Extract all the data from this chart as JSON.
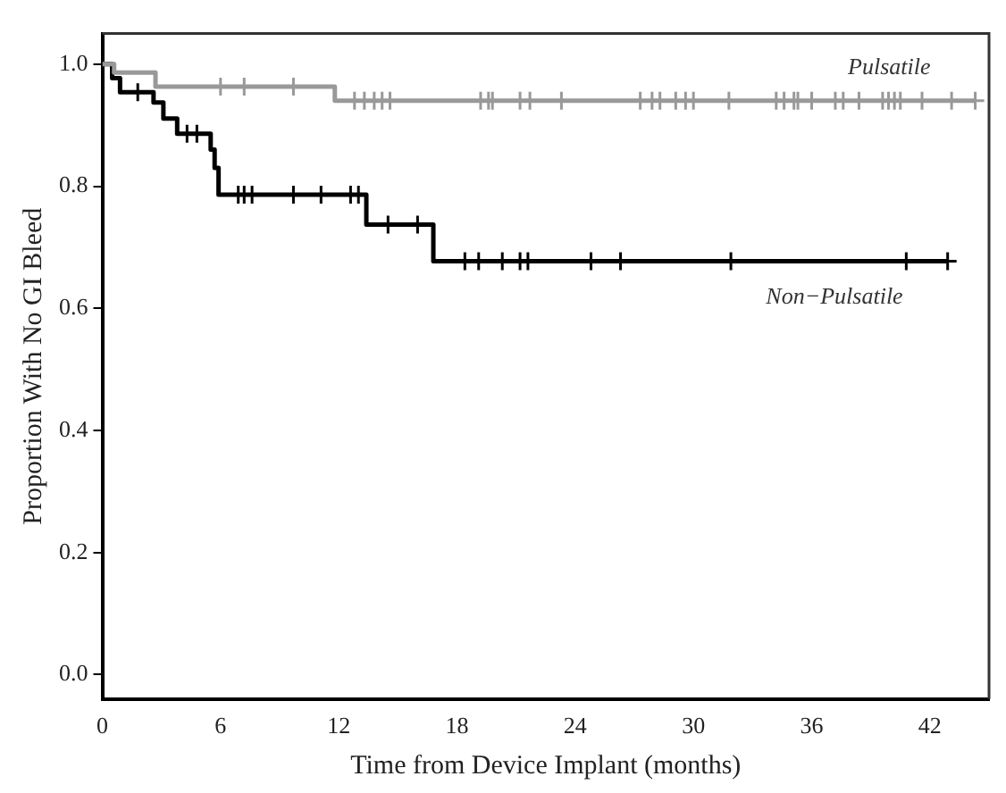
{
  "chart_data": {
    "type": "step",
    "xlabel": "Time from Device Implant (months)",
    "ylabel": "Proportion With No GI Bleed",
    "xlim": [
      0,
      45
    ],
    "ylim": [
      -0.04,
      1.05
    ],
    "xticks": [
      0,
      6,
      12,
      18,
      24,
      30,
      36,
      42
    ],
    "yticks": [
      {
        "value": 0,
        "label": "0.0"
      },
      {
        "value": 0.2,
        "label": "0.2"
      },
      {
        "value": 0.4,
        "label": "0.4"
      },
      {
        "value": 0.6,
        "label": "0.6"
      },
      {
        "value": 0.8,
        "label": "0.8"
      },
      {
        "value": 1,
        "label": "1.0"
      }
    ],
    "grid": false,
    "legend": false,
    "marker": "none",
    "line_style": "solid",
    "series": [
      {
        "name": "Pulsatile",
        "type": "step",
        "color": "#999999",
        "x": [
          0,
          0.6,
          2.7,
          11.8,
          44.3
        ],
        "values": [
          1,
          0.986,
          0.963,
          0.94,
          0.94
        ]
      },
      {
        "name": "Non−Pulsatile",
        "type": "step",
        "color": "#000000",
        "x": [
          0,
          0.5,
          0.9,
          2.6,
          3.1,
          3.8,
          5.5,
          5.7,
          5.9,
          13.4,
          16.8,
          42.9
        ],
        "values": [
          1,
          0.977,
          0.954,
          0.937,
          0.911,
          0.886,
          0.86,
          0.83,
          0.786,
          0.737,
          0.677,
          0.677
        ]
      },
      {
        "type": "scatter",
        "marker": "cross",
        "color": "#999999",
        "x": [
          6.0,
          7.2,
          9.7,
          12.8,
          13.3,
          13.8,
          14.2,
          14.6,
          19.2,
          19.6,
          19.8,
          21.2,
          21.7,
          23.3,
          27.3,
          27.9,
          28.3,
          29.1,
          29.6,
          30.0,
          31.8,
          34.2,
          34.6,
          35.1,
          35.3,
          36.0,
          37.2,
          37.6,
          38.4,
          39.6,
          39.9,
          40.2,
          40.5,
          41.6,
          43.1,
          44.3
        ],
        "values": [
          0.963,
          0.963,
          0.963,
          0.94,
          0.94,
          0.94,
          0.94,
          0.94,
          0.94,
          0.94,
          0.94,
          0.94,
          0.94,
          0.94,
          0.94,
          0.94,
          0.94,
          0.94,
          0.94,
          0.94,
          0.94,
          0.94,
          0.94,
          0.94,
          0.94,
          0.94,
          0.94,
          0.94,
          0.94,
          0.94,
          0.94,
          0.94,
          0.94,
          0.94,
          0.94,
          0.94
        ]
      },
      {
        "type": "scatter",
        "marker": "cross",
        "color": "#000000",
        "x": [
          1.8,
          4.3,
          4.8,
          6.9,
          7.2,
          7.6,
          9.7,
          11.1,
          12.6,
          13.0,
          14.5,
          16.0,
          18.4,
          19.1,
          20.3,
          21.2,
          21.6,
          24.8,
          26.3,
          31.9,
          40.8,
          42.9
        ],
        "values": [
          0.954,
          0.886,
          0.886,
          0.786,
          0.786,
          0.786,
          0.786,
          0.786,
          0.786,
          0.786,
          0.737,
          0.737,
          0.677,
          0.677,
          0.677,
          0.677,
          0.677,
          0.677,
          0.677,
          0.677,
          0.677,
          0.677
        ]
      }
    ]
  }
}
